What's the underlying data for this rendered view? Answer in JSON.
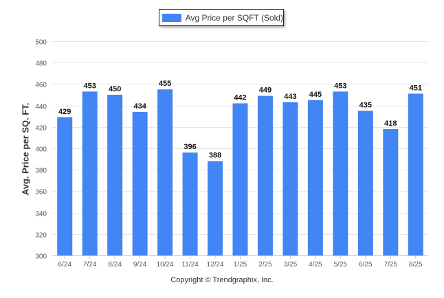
{
  "chart_data": {
    "type": "bar",
    "categories": [
      "6/24",
      "7/24",
      "8/24",
      "9/24",
      "10/24",
      "11/24",
      "12/24",
      "1/25",
      "2/25",
      "3/25",
      "4/25",
      "5/25",
      "6/25",
      "7/25",
      "8/25"
    ],
    "series": [
      {
        "name": "Avg Price per SQFT (Sold)",
        "values": [
          429,
          453,
          450,
          434,
          455,
          396,
          388,
          442,
          449,
          443,
          445,
          453,
          435,
          418,
          451
        ]
      }
    ],
    "ylabel": "Avg. Price per SQ. FT.",
    "xlabel": "",
    "ylim": [
      300,
      500
    ],
    "yticks": [
      300,
      320,
      340,
      360,
      380,
      400,
      420,
      440,
      460,
      480,
      500
    ],
    "grid": true,
    "legend_position": "top-center",
    "bar_color": "#4285f4",
    "data_labels": true
  },
  "legend": {
    "label": "Avg Price per SQFT (Sold)"
  },
  "footer": {
    "copyright": "Copyright © Trendgraphix, Inc."
  }
}
